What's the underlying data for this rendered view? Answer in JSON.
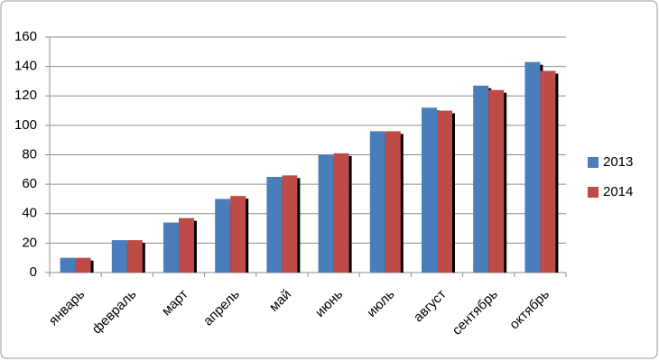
{
  "chart_data": {
    "type": "bar",
    "categories": [
      "январь",
      "февраль",
      "март",
      "апрель",
      "май",
      "июнь",
      "июль",
      "август",
      "сентябрь",
      "октябрь"
    ],
    "series": [
      {
        "name": "2013",
        "color": "#4a7ebb",
        "values": [
          10,
          22,
          34,
          50,
          65,
          80,
          96,
          112,
          127,
          143
        ]
      },
      {
        "name": "2014",
        "color": "#be4b48",
        "values": [
          10,
          22,
          37,
          52,
          66,
          81,
          96,
          110,
          124,
          137
        ]
      }
    ],
    "ylim": [
      0,
      160
    ],
    "yticks": [
      0,
      20,
      40,
      60,
      80,
      100,
      120,
      140,
      160
    ],
    "grid": true,
    "legend": "right"
  }
}
